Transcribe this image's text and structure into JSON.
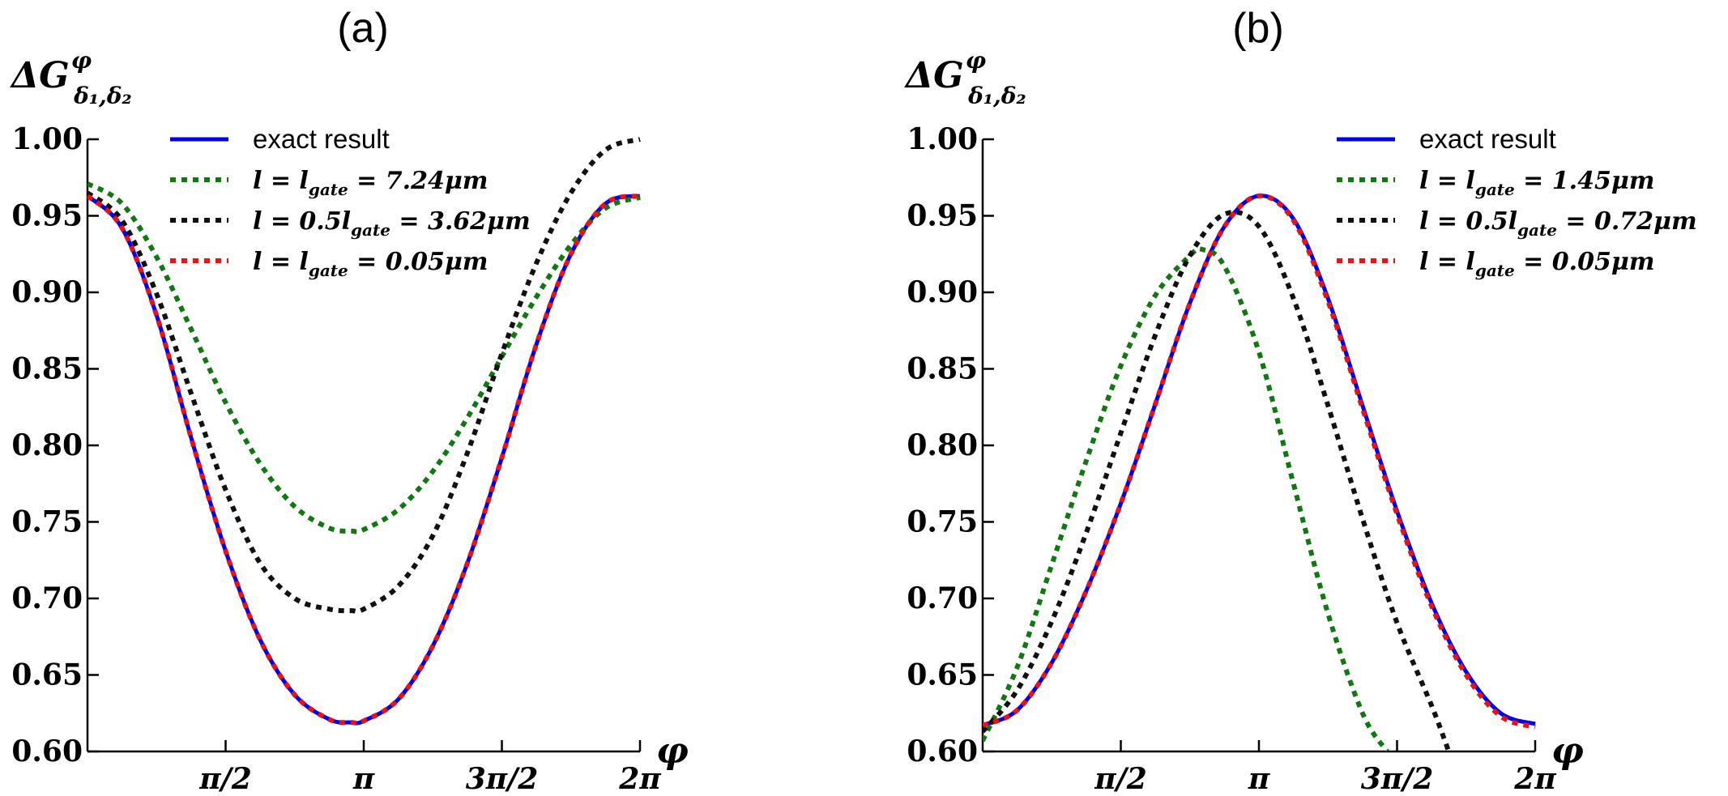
{
  "chart_data": [
    {
      "type": "line",
      "title": "(a)",
      "ylabel": "ΔG",
      "ylabel_sup": "φ",
      "ylabel_sub": "δ₁,δ₂",
      "xlabel": "φ",
      "xlim": [
        0,
        6.2832
      ],
      "ylim": [
        0.6,
        1.0
      ],
      "yticks": [
        0.6,
        0.65,
        0.7,
        0.75,
        0.8,
        0.85,
        0.9,
        0.95,
        1.0
      ],
      "ytick_labels": [
        "0.60",
        "0.65",
        "0.70",
        "0.75",
        "0.80",
        "0.85",
        "0.90",
        "0.95",
        "1.00"
      ],
      "xticks": [
        1.5708,
        3.1416,
        4.7124,
        6.2832
      ],
      "xtick_labels": [
        "π/2",
        "π",
        "3π/2",
        "2π"
      ],
      "legend": "top-right",
      "series": [
        {
          "name": "exact result",
          "color": "#0000ee",
          "dash": "solid",
          "x": [
            0,
            0.3927,
            0.7854,
            1.1781,
            1.5708,
            1.9635,
            2.3562,
            2.7489,
            3.0,
            3.1416,
            3.5343,
            3.927,
            4.3197,
            4.7124,
            5.1051,
            5.4978,
            5.8905,
            6.2832
          ],
          "y": [
            0.963,
            0.942,
            0.885,
            0.805,
            0.731,
            0.673,
            0.637,
            0.621,
            0.619,
            0.62,
            0.634,
            0.669,
            0.723,
            0.792,
            0.866,
            0.925,
            0.958,
            0.963
          ]
        },
        {
          "name": "l = l_gate = 7.24μm",
          "color": "#117711",
          "dash": "dot",
          "x": [
            0,
            0.3927,
            0.7854,
            1.1781,
            1.5708,
            1.9635,
            2.3562,
            2.7489,
            3.0,
            3.1416,
            3.5343,
            3.927,
            4.3197,
            4.7124,
            5.1051,
            5.4978,
            5.8905,
            6.2832
          ],
          "y": [
            0.971,
            0.958,
            0.923,
            0.876,
            0.828,
            0.788,
            0.76,
            0.746,
            0.744,
            0.745,
            0.758,
            0.783,
            0.818,
            0.858,
            0.897,
            0.931,
            0.955,
            0.962
          ]
        },
        {
          "name": "l = 0.5l_gate = 3.62μm",
          "color": "#111111",
          "dash": "dot",
          "x": [
            0,
            0.3927,
            0.7854,
            1.1781,
            1.5708,
            1.9635,
            2.3562,
            2.7489,
            3.0,
            3.1416,
            3.5343,
            3.927,
            4.3197,
            4.7124,
            5.1051,
            5.4978,
            5.8905,
            6.2832
          ],
          "y": [
            0.965,
            0.947,
            0.899,
            0.834,
            0.771,
            0.723,
            0.7,
            0.693,
            0.692,
            0.693,
            0.708,
            0.741,
            0.795,
            0.86,
            0.919,
            0.965,
            0.993,
            1.0
          ]
        },
        {
          "name": "l = l_gate = 0.05μm",
          "color": "#ee1111",
          "dash": "dot",
          "x": [
            0,
            0.3927,
            0.7854,
            1.1781,
            1.5708,
            1.9635,
            2.3562,
            2.7489,
            3.0,
            3.1416,
            3.5343,
            3.927,
            4.3197,
            4.7124,
            5.1051,
            5.4978,
            5.8905,
            6.2832
          ],
          "y": [
            0.963,
            0.942,
            0.885,
            0.805,
            0.731,
            0.673,
            0.637,
            0.621,
            0.619,
            0.62,
            0.634,
            0.669,
            0.723,
            0.792,
            0.866,
            0.925,
            0.958,
            0.963
          ]
        }
      ]
    },
    {
      "type": "line",
      "title": "(b)",
      "ylabel": "ΔG",
      "ylabel_sup": "φ",
      "ylabel_sub": "δ₁,δ₂",
      "xlabel": "φ",
      "xlim": [
        0,
        6.2832
      ],
      "ylim": [
        0.6,
        1.0
      ],
      "yticks": [
        0.6,
        0.65,
        0.7,
        0.75,
        0.8,
        0.85,
        0.9,
        0.95,
        1.0
      ],
      "ytick_labels": [
        "0.60",
        "0.65",
        "0.70",
        "0.75",
        "0.80",
        "0.85",
        "0.90",
        "0.95",
        "1.00"
      ],
      "xticks": [
        1.5708,
        3.1416,
        4.7124,
        6.2832
      ],
      "xtick_labels": [
        "π/2",
        "π",
        "3π/2",
        "2π"
      ],
      "legend": "top-right",
      "series": [
        {
          "name": "exact result",
          "color": "#0000ee",
          "dash": "solid",
          "x": [
            0,
            0.3927,
            0.7854,
            1.1781,
            1.5708,
            1.9635,
            2.3562,
            2.7489,
            3.1416,
            3.5343,
            3.927,
            4.3197,
            4.7124,
            5.1051,
            5.4978,
            5.8905,
            6.2832
          ],
          "y": [
            0.617,
            0.627,
            0.658,
            0.705,
            0.762,
            0.827,
            0.893,
            0.943,
            0.963,
            0.948,
            0.896,
            0.826,
            0.757,
            0.697,
            0.652,
            0.625,
            0.618
          ]
        },
        {
          "name": "l = l_gate = 1.45μm",
          "color": "#117711",
          "dash": "dot",
          "x": [
            0,
            0.3927,
            0.7854,
            1.1781,
            1.5708,
            1.9635,
            2.3562,
            2.5,
            2.7489,
            3.1416,
            3.5343,
            3.927,
            4.3197,
            4.6
          ],
          "y": [
            0.607,
            0.655,
            0.722,
            0.79,
            0.852,
            0.898,
            0.924,
            0.928,
            0.917,
            0.861,
            0.775,
            0.69,
            0.625,
            0.6
          ]
        },
        {
          "name": "l = 0.5l_gate = 0.72μm",
          "color": "#111111",
          "dash": "dot",
          "x": [
            0,
            0.3927,
            0.7854,
            1.1781,
            1.5708,
            1.9635,
            2.3562,
            2.7489,
            3.1416,
            3.5343,
            3.927,
            4.3197,
            4.7124,
            5.1051,
            5.3
          ],
          "y": [
            0.613,
            0.64,
            0.685,
            0.743,
            0.808,
            0.872,
            0.924,
            0.951,
            0.943,
            0.896,
            0.826,
            0.752,
            0.684,
            0.63,
            0.6
          ]
        },
        {
          "name": "l = l_gate = 0.05μm",
          "color": "#ee1111",
          "dash": "dot",
          "x": [
            0,
            0.3927,
            0.7854,
            1.1781,
            1.5708,
            1.9635,
            2.3562,
            2.7489,
            3.1416,
            3.5343,
            3.927,
            4.3197,
            4.7124,
            5.1051,
            5.4978,
            5.8905,
            6.2832
          ],
          "y": [
            0.617,
            0.627,
            0.658,
            0.705,
            0.762,
            0.827,
            0.893,
            0.943,
            0.963,
            0.947,
            0.894,
            0.824,
            0.755,
            0.695,
            0.65,
            0.623,
            0.616
          ]
        }
      ]
    }
  ]
}
